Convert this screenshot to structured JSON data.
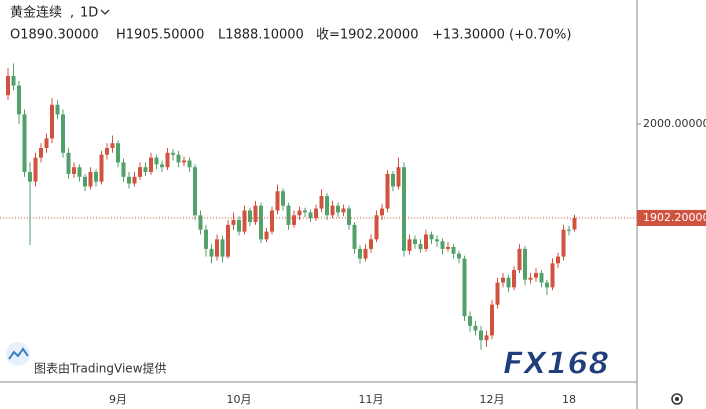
{
  "chart_data": {
    "type": "candlestick",
    "title": "黄金连续",
    "interval": "1D",
    "legend_text": [
      "O1890.30000",
      "H1905.50000",
      "L1888.10000",
      "收=1902.20000",
      "+13.30000 (+0.70%)"
    ],
    "watermark": "图表由TradingView提供",
    "logo": "FX168",
    "up_color": "#d0533f",
    "down_color": "#53a16a",
    "ylim": [
      1733.6,
      2129
    ],
    "yticks": [
      {
        "value": 2000,
        "label": "2000.00000"
      }
    ],
    "last_price": {
      "value": 1902.2,
      "label": "1902.20000"
    },
    "categories": [
      null,
      null,
      null,
      null,
      null,
      null,
      null,
      null,
      null,
      null,
      null,
      null,
      null,
      null,
      null,
      null,
      null,
      null,
      null,
      null,
      "9月",
      null,
      null,
      null,
      null,
      null,
      null,
      null,
      null,
      null,
      null,
      null,
      null,
      null,
      null,
      null,
      null,
      null,
      null,
      null,
      null,
      null,
      "10月",
      null,
      null,
      null,
      null,
      null,
      null,
      null,
      null,
      null,
      null,
      null,
      null,
      null,
      null,
      null,
      null,
      null,
      null,
      null,
      null,
      null,
      null,
      null,
      "11月",
      null,
      null,
      null,
      null,
      null,
      null,
      null,
      null,
      null,
      null,
      null,
      null,
      null,
      null,
      null,
      null,
      null,
      null,
      null,
      null,
      null,
      "12月",
      null,
      null,
      null,
      null,
      null,
      null,
      null,
      null,
      null,
      null,
      null,
      null,
      null,
      "18",
      null
    ],
    "ohlc": [
      [
        2030,
        2058,
        2025,
        2050
      ],
      [
        2050,
        2063,
        2035,
        2040
      ],
      [
        2040,
        2045,
        2000,
        2010
      ],
      [
        2010,
        2015,
        1945,
        1950
      ],
      [
        1950,
        1960,
        1874,
        1940
      ],
      [
        1940,
        1970,
        1935,
        1965
      ],
      [
        1965,
        1980,
        1960,
        1975
      ],
      [
        1975,
        1990,
        1970,
        1985
      ],
      [
        1985,
        2027,
        1980,
        2020
      ],
      [
        2020,
        2025,
        2005,
        2010
      ],
      [
        2010,
        2015,
        1965,
        1970
      ],
      [
        1970,
        1975,
        1943,
        1948
      ],
      [
        1948,
        1960,
        1944,
        1955
      ],
      [
        1955,
        1958,
        1940,
        1945
      ],
      [
        1945,
        1948,
        1930,
        1935
      ],
      [
        1935,
        1955,
        1932,
        1950
      ],
      [
        1950,
        1953,
        1935,
        1940
      ],
      [
        1940,
        1972,
        1937,
        1968
      ],
      [
        1968,
        1980,
        1963,
        1975
      ],
      [
        1975,
        1988,
        1970,
        1980
      ],
      [
        1980,
        1983,
        1955,
        1960
      ],
      [
        1960,
        1964,
        1940,
        1945
      ],
      [
        1945,
        1950,
        1933,
        1938
      ],
      [
        1938,
        1950,
        1935,
        1945
      ],
      [
        1945,
        1960,
        1942,
        1955
      ],
      [
        1955,
        1960,
        1946,
        1950
      ],
      [
        1950,
        1970,
        1947,
        1965
      ],
      [
        1965,
        1968,
        1953,
        1958
      ],
      [
        1958,
        1962,
        1950,
        1955
      ],
      [
        1955,
        1975,
        1952,
        1970
      ],
      [
        1970,
        1974,
        1962,
        1968
      ],
      [
        1968,
        1972,
        1955,
        1960
      ],
      [
        1960,
        1966,
        1956,
        1962
      ],
      [
        1962,
        1965,
        1950,
        1955
      ],
      [
        1955,
        1958,
        1900,
        1905
      ],
      [
        1905,
        1910,
        1885,
        1890
      ],
      [
        1890,
        1895,
        1862,
        1870
      ],
      [
        1870,
        1875,
        1855,
        1862
      ],
      [
        1862,
        1885,
        1858,
        1880
      ],
      [
        1880,
        1884,
        1856,
        1862
      ],
      [
        1862,
        1900,
        1860,
        1895
      ],
      [
        1895,
        1908,
        1890,
        1900
      ],
      [
        1900,
        1904,
        1884,
        1888
      ],
      [
        1888,
        1915,
        1885,
        1910
      ],
      [
        1910,
        1913,
        1894,
        1898
      ],
      [
        1898,
        1920,
        1895,
        1915
      ],
      [
        1915,
        1918,
        1876,
        1880
      ],
      [
        1880,
        1892,
        1877,
        1888
      ],
      [
        1888,
        1914,
        1885,
        1910
      ],
      [
        1910,
        1937,
        1906,
        1930
      ],
      [
        1930,
        1933,
        1910,
        1915
      ],
      [
        1915,
        1918,
        1890,
        1895
      ],
      [
        1895,
        1910,
        1892,
        1905
      ],
      [
        1905,
        1914,
        1900,
        1910
      ],
      [
        1910,
        1913,
        1903,
        1908
      ],
      [
        1908,
        1911,
        1898,
        1902
      ],
      [
        1902,
        1916,
        1899,
        1912
      ],
      [
        1912,
        1932,
        1908,
        1925
      ],
      [
        1925,
        1928,
        1900,
        1905
      ],
      [
        1905,
        1920,
        1902,
        1915
      ],
      [
        1915,
        1918,
        1903,
        1908
      ],
      [
        1908,
        1916,
        1904,
        1912
      ],
      [
        1912,
        1915,
        1890,
        1895
      ],
      [
        1895,
        1898,
        1865,
        1870
      ],
      [
        1870,
        1874,
        1855,
        1860
      ],
      [
        1860,
        1875,
        1857,
        1870
      ],
      [
        1870,
        1885,
        1866,
        1880
      ],
      [
        1880,
        1910,
        1877,
        1905
      ],
      [
        1905,
        1917,
        1900,
        1912
      ],
      [
        1912,
        1952,
        1908,
        1948
      ],
      [
        1948,
        1951,
        1930,
        1935
      ],
      [
        1935,
        1965,
        1932,
        1955
      ],
      [
        1955,
        1960,
        1862,
        1868
      ],
      [
        1868,
        1885,
        1864,
        1880
      ],
      [
        1880,
        1884,
        1870,
        1875
      ],
      [
        1875,
        1880,
        1866,
        1870
      ],
      [
        1870,
        1890,
        1867,
        1885
      ],
      [
        1885,
        1888,
        1875,
        1880
      ],
      [
        1880,
        1884,
        1872,
        1878
      ],
      [
        1878,
        1881,
        1864,
        1870
      ],
      [
        1870,
        1877,
        1867,
        1872
      ],
      [
        1872,
        1875,
        1860,
        1865
      ],
      [
        1865,
        1868,
        1855,
        1860
      ],
      [
        1860,
        1863,
        1795,
        1800
      ],
      [
        1800,
        1805,
        1784,
        1790
      ],
      [
        1790,
        1795,
        1780,
        1785
      ],
      [
        1785,
        1790,
        1765,
        1775
      ],
      [
        1775,
        1785,
        1768,
        1780
      ],
      [
        1780,
        1817,
        1776,
        1812
      ],
      [
        1812,
        1840,
        1808,
        1835
      ],
      [
        1835,
        1845,
        1830,
        1840
      ],
      [
        1840,
        1843,
        1825,
        1830
      ],
      [
        1830,
        1852,
        1827,
        1848
      ],
      [
        1848,
        1875,
        1845,
        1870
      ],
      [
        1870,
        1873,
        1832,
        1838
      ],
      [
        1838,
        1845,
        1834,
        1840
      ],
      [
        1840,
        1850,
        1836,
        1845
      ],
      [
        1845,
        1848,
        1830,
        1835
      ],
      [
        1835,
        1838,
        1822,
        1830
      ],
      [
        1830,
        1860,
        1827,
        1855
      ],
      [
        1855,
        1866,
        1850,
        1862
      ],
      [
        1862,
        1895,
        1858,
        1890
      ],
      [
        1890,
        1894,
        1884,
        1888.9
      ],
      [
        1890.3,
        1905.5,
        1888.1,
        1902.2
      ]
    ]
  }
}
